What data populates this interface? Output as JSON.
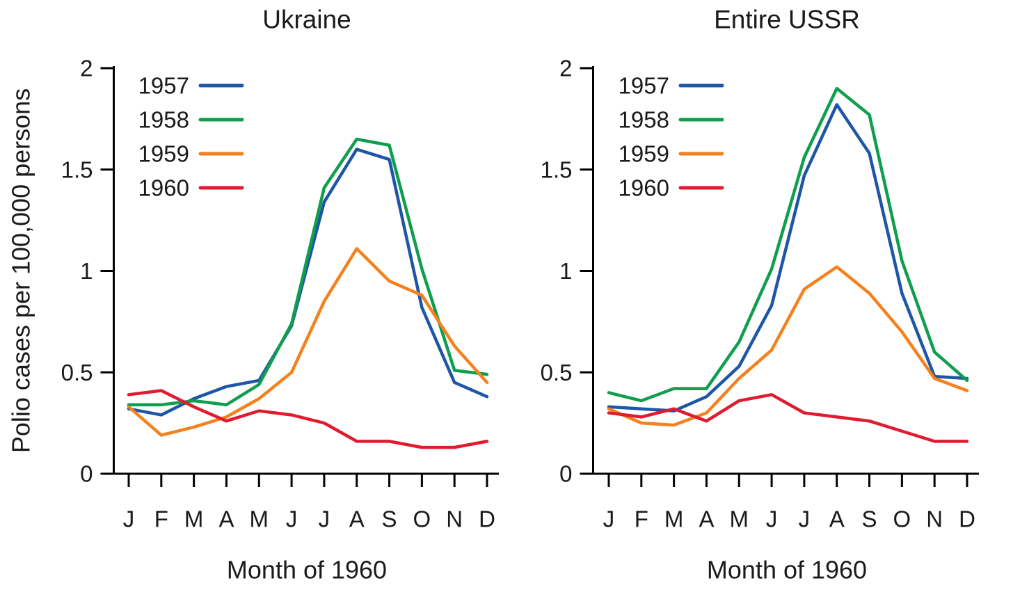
{
  "style": {
    "background": "#ffffff",
    "text_color": "#1a1a1a",
    "axis_color": "#000000"
  },
  "chart_data": [
    {
      "type": "line",
      "title": "Ukraine",
      "xlabel": "Month of 1960",
      "ylabel": "Polio cases per 100,000 persons",
      "categories": [
        "J",
        "F",
        "M",
        "A",
        "M",
        "J",
        "J",
        "A",
        "S",
        "O",
        "N",
        "D"
      ],
      "ylim": [
        0,
        2
      ],
      "yticks": [
        0,
        0.5,
        1,
        1.5,
        2
      ],
      "ytick_labels": [
        "0",
        "0.5",
        "1",
        "1.5",
        "2"
      ],
      "grid": false,
      "legend_position": "upper-left-inside",
      "series": [
        {
          "name": "1957",
          "color": "#1e56a7",
          "values": [
            0.32,
            0.29,
            0.37,
            0.43,
            0.46,
            0.73,
            1.34,
            1.6,
            1.55,
            0.82,
            0.45,
            0.38
          ]
        },
        {
          "name": "1958",
          "color": "#0f9e4d",
          "values": [
            0.34,
            0.34,
            0.36,
            0.34,
            0.44,
            0.74,
            1.41,
            1.65,
            1.62,
            1.01,
            0.51,
            0.49
          ]
        },
        {
          "name": "1959",
          "color": "#f5811d",
          "values": [
            0.33,
            0.19,
            0.23,
            0.28,
            0.37,
            0.5,
            0.85,
            1.11,
            0.95,
            0.88,
            0.63,
            0.45
          ]
        },
        {
          "name": "1960",
          "color": "#e01b30",
          "values": [
            0.39,
            0.41,
            0.33,
            0.26,
            0.31,
            0.29,
            0.25,
            0.16,
            0.16,
            0.13,
            0.13,
            0.16
          ]
        }
      ]
    },
    {
      "type": "line",
      "title": "Entire USSR",
      "xlabel": "Month of 1960",
      "ylabel": "Polio cases per 100,000 persons",
      "categories": [
        "J",
        "F",
        "M",
        "A",
        "M",
        "J",
        "J",
        "A",
        "S",
        "O",
        "N",
        "D"
      ],
      "ylim": [
        0,
        2
      ],
      "yticks": [
        0,
        0.5,
        1,
        1.5,
        2
      ],
      "ytick_labels": [
        "0",
        "0.5",
        "1",
        "1.5",
        "2"
      ],
      "grid": false,
      "legend_position": "upper-left-inside",
      "series": [
        {
          "name": "1957",
          "color": "#1e56a7",
          "values": [
            0.33,
            0.32,
            0.31,
            0.38,
            0.53,
            0.83,
            1.47,
            1.82,
            1.58,
            0.89,
            0.48,
            0.47
          ]
        },
        {
          "name": "1958",
          "color": "#0f9e4d",
          "values": [
            0.4,
            0.36,
            0.42,
            0.42,
            0.65,
            1.01,
            1.56,
            1.9,
            1.77,
            1.05,
            0.6,
            0.46
          ]
        },
        {
          "name": "1959",
          "color": "#f5811d",
          "values": [
            0.32,
            0.25,
            0.24,
            0.3,
            0.47,
            0.61,
            0.91,
            1.02,
            0.89,
            0.7,
            0.47,
            0.41
          ]
        },
        {
          "name": "1960",
          "color": "#e01b30",
          "values": [
            0.3,
            0.28,
            0.32,
            0.26,
            0.36,
            0.39,
            0.3,
            0.28,
            0.26,
            0.21,
            0.16,
            0.16
          ]
        }
      ]
    }
  ]
}
